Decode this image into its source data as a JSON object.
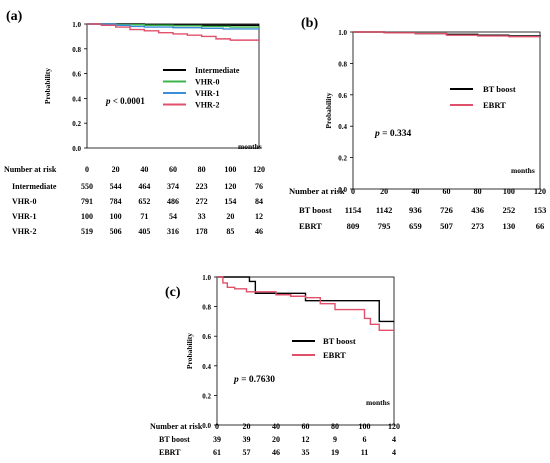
{
  "chart_data": [
    {
      "panel_label": "(a)",
      "type": "line",
      "ylabel": "Probability",
      "xlabel": "months",
      "x_ticks": [
        0,
        20,
        40,
        60,
        80,
        100,
        120
      ],
      "y_ticks": [
        "0.0",
        "0.2",
        "0.4",
        "0.6",
        "0.8",
        "1.0"
      ],
      "xlim": [
        0,
        120
      ],
      "ylim": [
        0,
        1.0
      ],
      "legend_position": "right",
      "annotation_prefix": "p",
      "annotation_value": " < 0.0001",
      "series": [
        {
          "name": "Intermediate",
          "color": "#000000",
          "x": [
            0,
            10,
            20,
            40,
            60,
            80,
            100,
            120
          ],
          "y": [
            1.0,
            1.0,
            1.0,
            0.995,
            0.99,
            0.99,
            0.99,
            0.99
          ]
        },
        {
          "name": "VHR-0",
          "color": "#3cb44b",
          "x": [
            0,
            10,
            20,
            40,
            60,
            80,
            100,
            120
          ],
          "y": [
            1.0,
            0.998,
            0.995,
            0.99,
            0.985,
            0.98,
            0.975,
            0.975
          ]
        },
        {
          "name": "VHR-1",
          "color": "#3a8fd8",
          "x": [
            0,
            10,
            20,
            30,
            40,
            60,
            80,
            95,
            120
          ],
          "y": [
            1.0,
            1.0,
            0.99,
            0.98,
            0.975,
            0.97,
            0.965,
            0.96,
            0.96
          ]
        },
        {
          "name": "VHR-2",
          "color": "#e0506a",
          "x": [
            0,
            10,
            20,
            30,
            40,
            50,
            60,
            70,
            80,
            90,
            100,
            110,
            120
          ],
          "y": [
            1.0,
            0.99,
            0.975,
            0.955,
            0.945,
            0.93,
            0.92,
            0.91,
            0.9,
            0.88,
            0.87,
            0.87,
            0.87
          ]
        }
      ],
      "risk_table": {
        "header": "Number at risk",
        "times": [
          "0",
          "20",
          "40",
          "60",
          "80",
          "100",
          "120"
        ],
        "rows": [
          {
            "label": "Intermediate",
            "values": [
              "550",
              "544",
              "464",
              "374",
              "223",
              "120",
              "76"
            ]
          },
          {
            "label": "VHR-0",
            "values": [
              "791",
              "784",
              "652",
              "486",
              "272",
              "154",
              "84"
            ]
          },
          {
            "label": "VHR-1",
            "values": [
              "100",
              "100",
              "71",
              "54",
              "33",
              "20",
              "12"
            ]
          },
          {
            "label": "VHR-2",
            "values": [
              "519",
              "506",
              "405",
              "316",
              "178",
              "85",
              "46"
            ]
          }
        ]
      }
    },
    {
      "panel_label": "(b)",
      "type": "line",
      "ylabel": "Probability",
      "xlabel": "months",
      "x_ticks": [
        0,
        20,
        40,
        60,
        80,
        100,
        120
      ],
      "y_ticks": [
        "0.0",
        "0.2",
        "0.4",
        "0.6",
        "0.8",
        "1.0"
      ],
      "xlim": [
        0,
        120
      ],
      "ylim": [
        0,
        1.0
      ],
      "legend_position": "right",
      "annotation_prefix": "p",
      "annotation_value": " = 0.334",
      "series": [
        {
          "name": "BT boost",
          "color": "#000000",
          "x": [
            0,
            20,
            40,
            60,
            80,
            100,
            120
          ],
          "y": [
            1.0,
            0.995,
            0.99,
            0.985,
            0.98,
            0.975,
            0.97
          ]
        },
        {
          "name": "EBRT",
          "color": "#e0506a",
          "x": [
            0,
            20,
            40,
            60,
            80,
            100,
            120
          ],
          "y": [
            1.0,
            0.995,
            0.99,
            0.98,
            0.975,
            0.97,
            0.97
          ]
        }
      ],
      "risk_table": {
        "header": "Number at risk",
        "times": [
          "0",
          "20",
          "40",
          "60",
          "80",
          "100",
          "120"
        ],
        "rows": [
          {
            "label": "BT boost",
            "values": [
              "1154",
              "1142",
              "936",
              "726",
              "436",
              "252",
              "153"
            ]
          },
          {
            "label": "EBRT",
            "values": [
              "809",
              "795",
              "659",
              "507",
              "273",
              "130",
              "66"
            ]
          }
        ]
      }
    },
    {
      "panel_label": "(c)",
      "type": "line",
      "ylabel": "Probability",
      "xlabel": "months",
      "x_ticks": [
        0,
        20,
        40,
        60,
        80,
        100,
        120
      ],
      "y_ticks": [
        "0.0",
        "0.2",
        "0.4",
        "0.6",
        "0.8",
        "1.0"
      ],
      "xlim": [
        0,
        120
      ],
      "ylim": [
        0,
        1.0
      ],
      "legend_position": "right",
      "annotation_prefix": "p",
      "annotation_value": " = 0.7630",
      "series": [
        {
          "name": "BT boost",
          "color": "#000000",
          "x": [
            0,
            20,
            22,
            26,
            40,
            52,
            60,
            80,
            100,
            110,
            120
          ],
          "y": [
            1.0,
            1.0,
            0.97,
            0.89,
            0.89,
            0.89,
            0.84,
            0.84,
            0.84,
            0.7,
            0.7
          ]
        },
        {
          "name": "EBRT",
          "color": "#e0506a",
          "x": [
            0,
            4,
            7,
            12,
            20,
            30,
            40,
            50,
            60,
            70,
            80,
            100,
            104,
            110,
            120
          ],
          "y": [
            1.0,
            0.96,
            0.93,
            0.92,
            0.9,
            0.9,
            0.88,
            0.87,
            0.86,
            0.82,
            0.78,
            0.72,
            0.68,
            0.64,
            0.64
          ]
        }
      ],
      "risk_table": {
        "header": "Number at risk",
        "times": [
          "0",
          "20",
          "40",
          "60",
          "80",
          "100",
          "120"
        ],
        "rows": [
          {
            "label": "BT boost",
            "values": [
              "39",
              "39",
              "20",
              "12",
              "9",
              "6",
              "4"
            ]
          },
          {
            "label": "EBRT",
            "values": [
              "61",
              "57",
              "46",
              "35",
              "19",
              "11",
              "4"
            ]
          }
        ]
      }
    }
  ]
}
